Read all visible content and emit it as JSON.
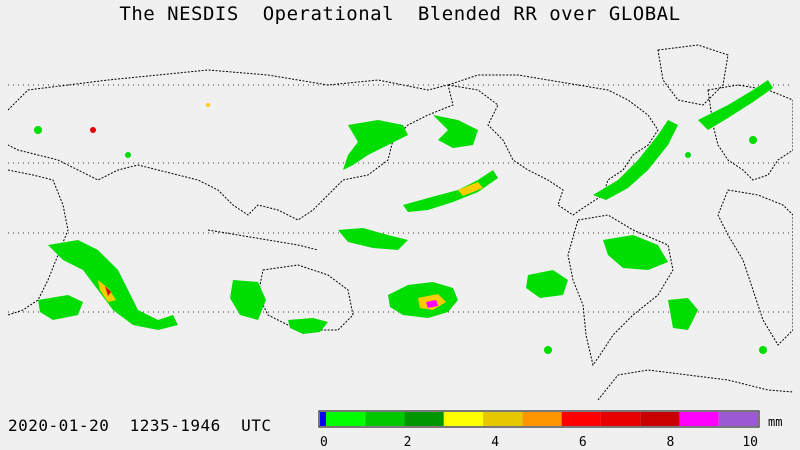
{
  "title": "The NESDIS  Operational  Blended RR over GLOBAL",
  "footer": {
    "date": "2020-01-20",
    "time_range": "1235-1946",
    "tz": "UTC"
  },
  "legend": {
    "unit": "mm",
    "tick_labels": [
      "0",
      "2",
      "4",
      "6",
      "8",
      "10"
    ],
    "colors": [
      "#0000ff",
      "#00ff00",
      "#00c800",
      "#009600",
      "#ffff00",
      "#e6c800",
      "#ff9600",
      "#ff0000",
      "#e60000",
      "#c80000",
      "#ff00ff",
      "#9b5ad2"
    ]
  },
  "map": {
    "land_color": "#000000",
    "background": "#f0f0f0",
    "gridlines": "dotted",
    "precip_colors": {
      "light": "#00ff00",
      "moderate": "#00b400",
      "heavy": "#ffff00",
      "very_heavy": "#ff0000",
      "extreme": "#ff00ff"
    }
  }
}
